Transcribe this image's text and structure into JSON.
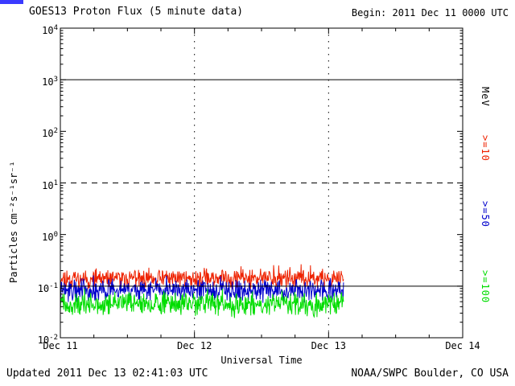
{
  "header": {
    "title": "GOES13 Proton Flux (5 minute data)",
    "begin_label": "Begin: 2011 Dec 11 0000 UTC"
  },
  "axes": {
    "xlabel": "Universal Time",
    "ylabel": "Particles cm⁻²s⁻¹sr⁻¹"
  },
  "legend": {
    "units_label": "MeV",
    "entries": [
      {
        "label": ">=10",
        "color": "#ee2200"
      },
      {
        "label": ">=50",
        "color": "#0000cc"
      },
      {
        "label": ">=100",
        "color": "#00dd00"
      }
    ]
  },
  "footer": {
    "updated_label": "Updated 2011 Dec 13 02:41:03 UTC",
    "source_label": "NOAA/SWPC Boulder, CO USA"
  },
  "chart_data": {
    "type": "line",
    "title": "GOES13 Proton Flux (5 minute data)",
    "xlabel": "Universal Time",
    "ylabel": "Particles cm-2 s-1 sr-1 (log scale)",
    "x_axis": {
      "tick_labels": [
        "Dec 11",
        "Dec 12",
        "Dec 13",
        "Dec 14"
      ],
      "span_days": 3,
      "minor_tick_hours": 6
    },
    "y_axis": {
      "scale": "log10",
      "min": 0.01,
      "max": 10000,
      "tick_exponents": [
        4,
        3,
        2,
        1,
        0,
        -1,
        -2
      ]
    },
    "gridlines": {
      "horizontal_solid_at": [
        1000,
        0.1
      ],
      "horizontal_dashed_at": [
        10
      ],
      "vertical_dotted_at_days": [
        1,
        2
      ]
    },
    "series": [
      {
        "name": ">=10 MeV",
        "color": "#ee2200",
        "interval_minutes": 5,
        "data_start_day": 0,
        "data_end_day": 2.111,
        "approx_mean_flux": 0.14,
        "approx_flux_range": [
          0.08,
          0.3
        ],
        "baseline_log10": -0.85,
        "spread_log10": 0.22,
        "seed": 11
      },
      {
        "name": ">=50 MeV",
        "color": "#0000cc",
        "interval_minutes": 5,
        "data_start_day": 0,
        "data_end_day": 2.111,
        "approx_mean_flux": 0.08,
        "approx_flux_range": [
          0.045,
          0.15
        ],
        "baseline_log10": -1.08,
        "spread_log10": 0.25,
        "seed": 22
      },
      {
        "name": ">=100 MeV",
        "color": "#00dd00",
        "interval_minutes": 5,
        "data_start_day": 0,
        "data_end_day": 2.111,
        "approx_mean_flux": 0.045,
        "approx_flux_range": [
          0.022,
          0.08
        ],
        "baseline_log10": -1.35,
        "spread_log10": 0.28,
        "seed": 33
      }
    ]
  }
}
